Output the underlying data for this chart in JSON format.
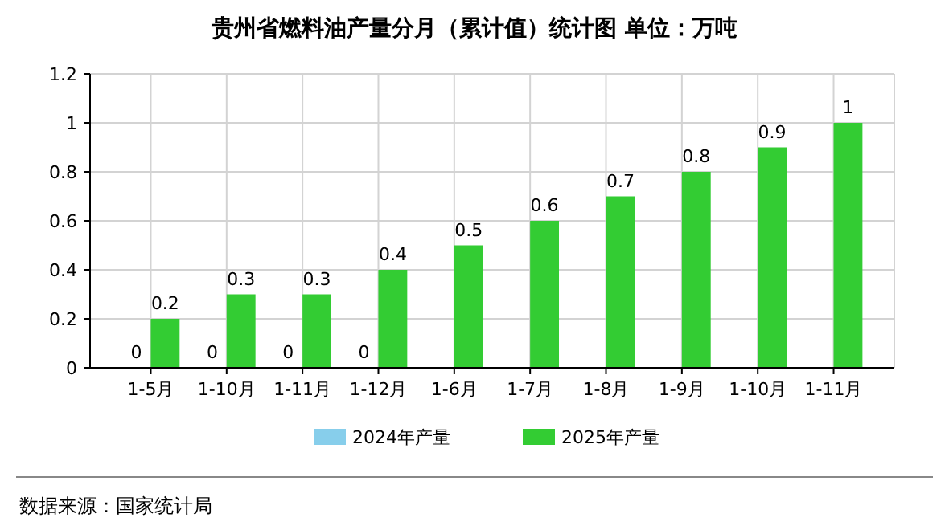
{
  "chart_data": {
    "type": "bar",
    "title": "贵州省燃料油产量分月（累计值）统计图 单位：万吨",
    "categories": [
      "1-5月",
      "1-10月",
      "1-11月",
      "1-12月",
      "1-6月",
      "1-7月",
      "1-8月",
      "1-9月",
      "1-10月",
      "1-11月"
    ],
    "series": [
      {
        "name": "2024年产量",
        "color": "#87ceeb",
        "values": [
          0,
          0,
          0,
          0,
          null,
          null,
          null,
          null,
          null,
          null
        ]
      },
      {
        "name": "2025年产量",
        "color": "#33cc33",
        "values": [
          0.2,
          0.3,
          0.3,
          0.4,
          0.5,
          0.6,
          0.7,
          0.8,
          0.9,
          1
        ]
      }
    ],
    "ylim": [
      0,
      1.2
    ],
    "yticks": [
      0,
      0.2,
      0.4,
      0.6,
      0.8,
      1,
      1.2
    ],
    "grid": true,
    "data_labels": true,
    "legend": "bottom",
    "annotations": [
      "数据来源：国家统计局"
    ]
  }
}
